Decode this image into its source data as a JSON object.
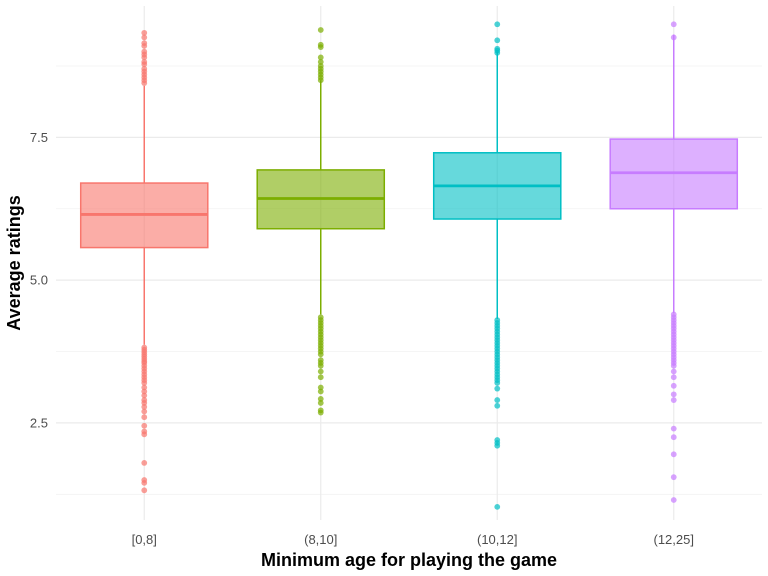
{
  "chart_data": {
    "type": "boxplot",
    "title": "",
    "xlabel": "Minimum age for playing the game",
    "ylabel": "Average ratings",
    "categories": [
      "[0,8]",
      "(8,10]",
      "(10,12]",
      "(12,25]"
    ],
    "ylim": [
      0.8,
      9.8
    ],
    "y_ticks": [
      {
        "value": 2.5,
        "label": "2.5"
      },
      {
        "value": 5.0,
        "label": "5.0"
      },
      {
        "value": 7.5,
        "label": "7.5"
      }
    ],
    "y_minor_ticks": [
      1.25,
      3.75,
      6.25,
      8.75
    ],
    "grid": true,
    "legend": "none",
    "boxes": [
      {
        "category": "[0,8]",
        "color": "#F8766D",
        "q1": 5.57,
        "median": 6.15,
        "q3": 6.7,
        "whisker_low": 3.87,
        "whisker_high": 8.4,
        "outliers": [
          9.33,
          9.25,
          9.15,
          9.1,
          9.0,
          8.95,
          8.9,
          8.82,
          8.78,
          8.7,
          8.65,
          8.6,
          8.55,
          8.5,
          8.45,
          3.82,
          3.78,
          3.74,
          3.7,
          3.66,
          3.62,
          3.58,
          3.55,
          3.5,
          3.45,
          3.4,
          3.35,
          3.3,
          3.25,
          3.2,
          3.12,
          3.05,
          2.98,
          2.9,
          2.85,
          2.78,
          2.7,
          2.6,
          2.45,
          2.35,
          2.3,
          1.8,
          1.5,
          1.45,
          1.32
        ]
      },
      {
        "category": "(8,10]",
        "color": "#7CAE00",
        "q1": 5.9,
        "median": 6.43,
        "q3": 6.93,
        "whisker_low": 4.4,
        "whisker_high": 8.5,
        "outliers": [
          9.38,
          9.12,
          9.08,
          8.9,
          8.82,
          8.75,
          8.7,
          8.65,
          8.6,
          8.55,
          8.5,
          4.35,
          4.3,
          4.25,
          4.2,
          4.15,
          4.1,
          4.05,
          4.0,
          3.95,
          3.9,
          3.85,
          3.8,
          3.75,
          3.7,
          3.6,
          3.55,
          3.5,
          3.4,
          3.3,
          3.12,
          3.05,
          2.92,
          2.85,
          2.72,
          2.68
        ]
      },
      {
        "category": "(10,12]",
        "color": "#00BFC4",
        "q1": 6.07,
        "median": 6.65,
        "q3": 7.23,
        "whisker_low": 4.32,
        "whisker_high": 9.0,
        "outliers": [
          9.48,
          9.2,
          9.05,
          9.02,
          8.98,
          4.3,
          4.25,
          4.2,
          4.15,
          4.1,
          4.05,
          4.0,
          3.95,
          3.9,
          3.85,
          3.8,
          3.75,
          3.7,
          3.65,
          3.6,
          3.55,
          3.5,
          3.45,
          3.4,
          3.35,
          3.3,
          3.25,
          3.2,
          3.1,
          2.9,
          2.8,
          2.2,
          2.15,
          2.1,
          1.03
        ]
      },
      {
        "category": "(12,25]",
        "color": "#C77CFF",
        "q1": 6.25,
        "median": 6.88,
        "q3": 7.47,
        "whisker_low": 4.42,
        "whisker_high": 9.3,
        "outliers": [
          9.48,
          9.25,
          4.4,
          4.35,
          4.3,
          4.25,
          4.2,
          4.15,
          4.1,
          4.05,
          4.0,
          3.95,
          3.9,
          3.85,
          3.8,
          3.75,
          3.7,
          3.65,
          3.6,
          3.55,
          3.5,
          3.4,
          3.3,
          3.15,
          3.0,
          2.9,
          2.4,
          2.25,
          1.95,
          1.55,
          1.15
        ]
      }
    ]
  }
}
